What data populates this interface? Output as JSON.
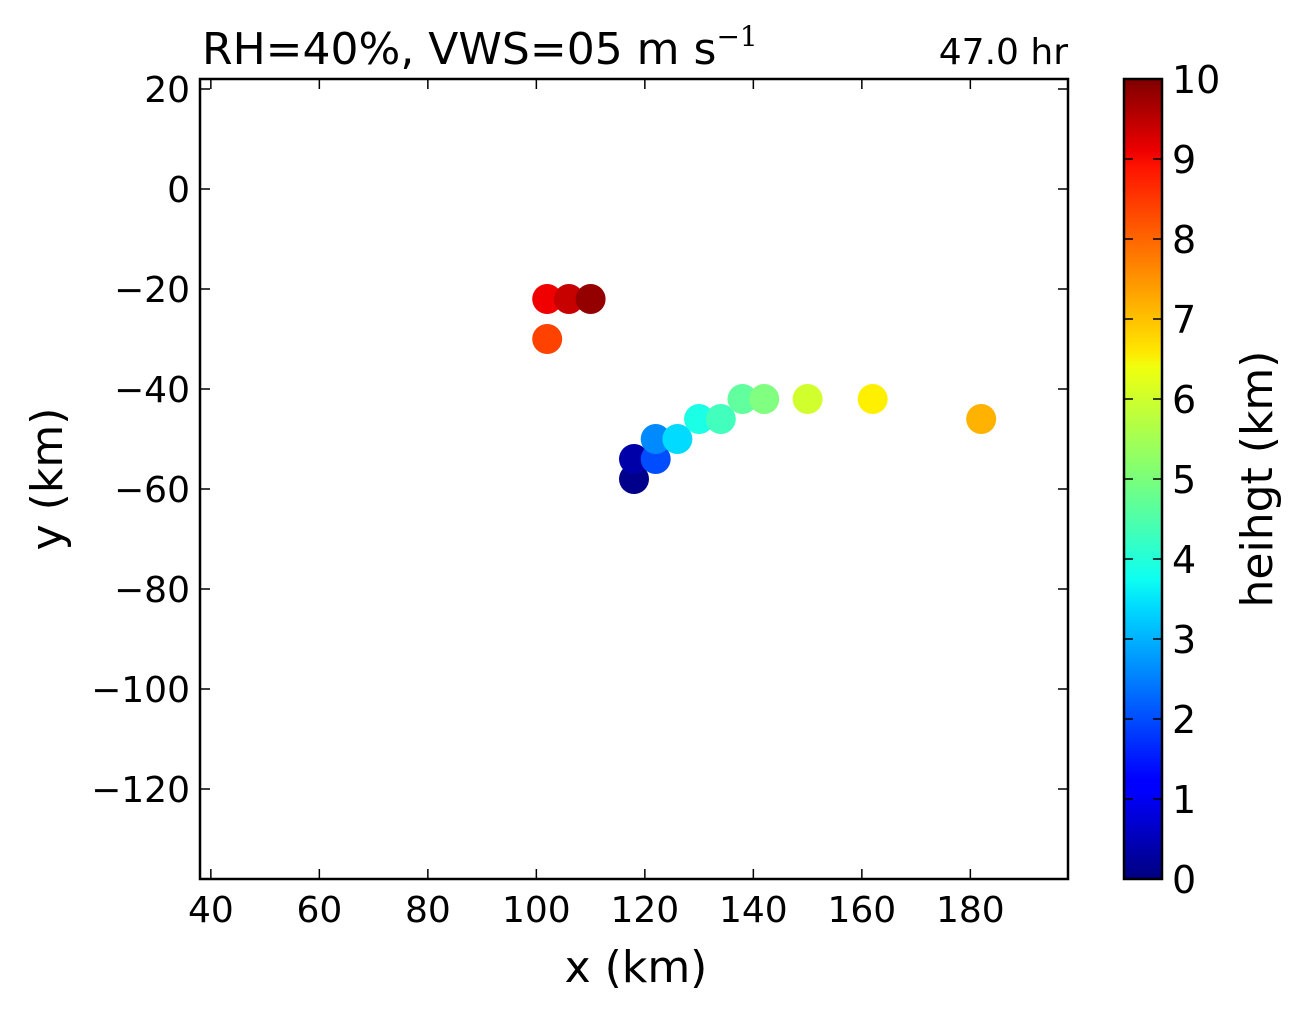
{
  "chart_data": {
    "type": "scatter",
    "title": "RH=40%, VWS=05 m s",
    "title_superscript": "−1",
    "time_label": "47.0 hr",
    "time_label_color": "#0000ff",
    "xlabel": "x (km)",
    "ylabel": "y (km)",
    "xlim": [
      38,
      198
    ],
    "ylim": [
      -138,
      22
    ],
    "xticks": [
      40,
      60,
      80,
      100,
      120,
      140,
      160,
      180
    ],
    "xtick_labels": [
      "40",
      "60",
      "80",
      "100",
      "120",
      "140",
      "160",
      "180"
    ],
    "yticks": [
      20,
      0,
      -20,
      -40,
      -60,
      -80,
      -100,
      -120
    ],
    "ytick_labels": [
      "20",
      "0",
      "−20",
      "−40",
      "−60",
      "−80",
      "−100",
      "−120"
    ],
    "grid": false,
    "colormap": "jet",
    "colorbar": {
      "label": "heihgt (km)",
      "range": [
        0,
        10
      ],
      "ticks": [
        0,
        1,
        2,
        3,
        4,
        5,
        6,
        7,
        8,
        9,
        10
      ],
      "tick_labels": [
        "0",
        "1",
        "2",
        "3",
        "4",
        "5",
        "6",
        "7",
        "8",
        "9",
        "10"
      ]
    },
    "points": [
      {
        "x": 118,
        "y": -58,
        "c": 0.1
      },
      {
        "x": 118,
        "y": -54,
        "c": 0.4
      },
      {
        "x": 122,
        "y": -54,
        "c": 2.0
      },
      {
        "x": 122,
        "y": -50,
        "c": 2.6
      },
      {
        "x": 126,
        "y": -50,
        "c": 3.4
      },
      {
        "x": 130,
        "y": -46,
        "c": 4.0
      },
      {
        "x": 134,
        "y": -46,
        "c": 4.4
      },
      {
        "x": 138,
        "y": -42,
        "c": 4.7
      },
      {
        "x": 142,
        "y": -42,
        "c": 5.0
      },
      {
        "x": 150,
        "y": -42,
        "c": 5.8
      },
      {
        "x": 162,
        "y": -42,
        "c": 6.4
      },
      {
        "x": 182,
        "y": -46,
        "c": 7.0
      },
      {
        "x": 102,
        "y": -30,
        "c": 8.1
      },
      {
        "x": 102,
        "y": -22,
        "c": 8.9
      },
      {
        "x": 106,
        "y": -22,
        "c": 9.3
      },
      {
        "x": 110,
        "y": -22,
        "c": 9.8
      }
    ]
  }
}
